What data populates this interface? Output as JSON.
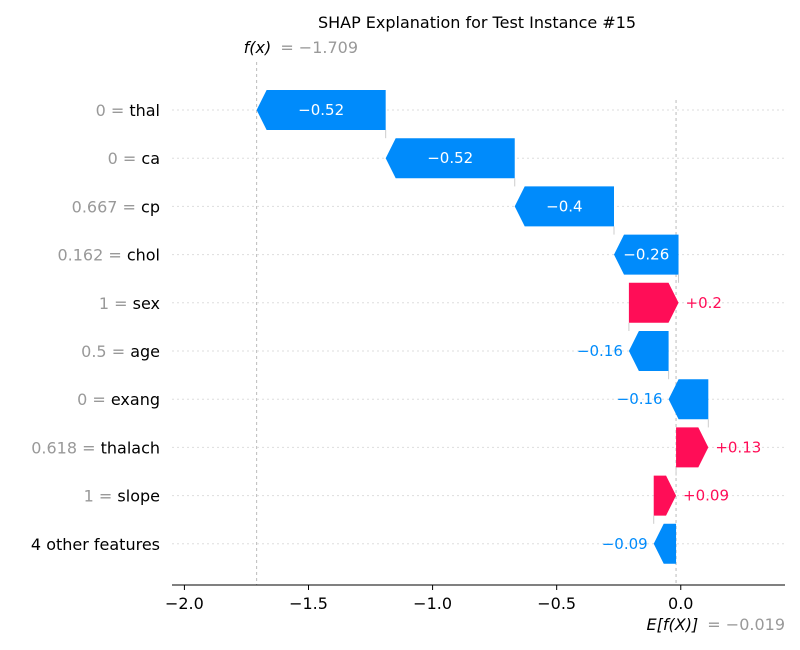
{
  "chart_data": {
    "type": "waterfall",
    "title": "SHAP Explanation for Test Instance #15",
    "fx": {
      "label": "f(x)",
      "value_text": "= −1.709",
      "value": -1.709
    },
    "base": {
      "label": "E[f(X)]",
      "value_text": "= −0.019",
      "value": -0.019
    },
    "features": [
      {
        "value": "0",
        "name": "thal",
        "shap": -0.52,
        "label": "−0.52"
      },
      {
        "value": "0",
        "name": "ca",
        "shap": -0.52,
        "label": "−0.52"
      },
      {
        "value": "0.667",
        "name": "cp",
        "shap": -0.4,
        "label": "−0.4"
      },
      {
        "value": "0.162",
        "name": "chol",
        "shap": -0.26,
        "label": "−0.26"
      },
      {
        "value": "1",
        "name": "sex",
        "shap": 0.2,
        "label": "+0.2"
      },
      {
        "value": "0.5",
        "name": "age",
        "shap": -0.16,
        "label": "−0.16"
      },
      {
        "value": "0",
        "name": "exang",
        "shap": -0.16,
        "label": "−0.16"
      },
      {
        "value": "0.618",
        "name": "thalach",
        "shap": 0.13,
        "label": "+0.13"
      },
      {
        "value": "1",
        "name": "slope",
        "shap": 0.09,
        "label": "+0.09"
      },
      {
        "value": "",
        "name": "4 other features",
        "shap": -0.09,
        "label": "−0.09"
      }
    ],
    "xticks": [
      {
        "value": -2.0,
        "label": "−2.0"
      },
      {
        "value": -1.5,
        "label": "−1.5"
      },
      {
        "value": -1.0,
        "label": "−1.0"
      },
      {
        "value": -0.5,
        "label": "−0.5"
      },
      {
        "value": 0.0,
        "label": "0.0"
      }
    ],
    "xlim": [
      -2.05,
      0.42
    ],
    "colors": {
      "positive": "#ff0d57",
      "negative": "#008bfb",
      "muted": "#999999",
      "grid": "#dddddd"
    }
  }
}
